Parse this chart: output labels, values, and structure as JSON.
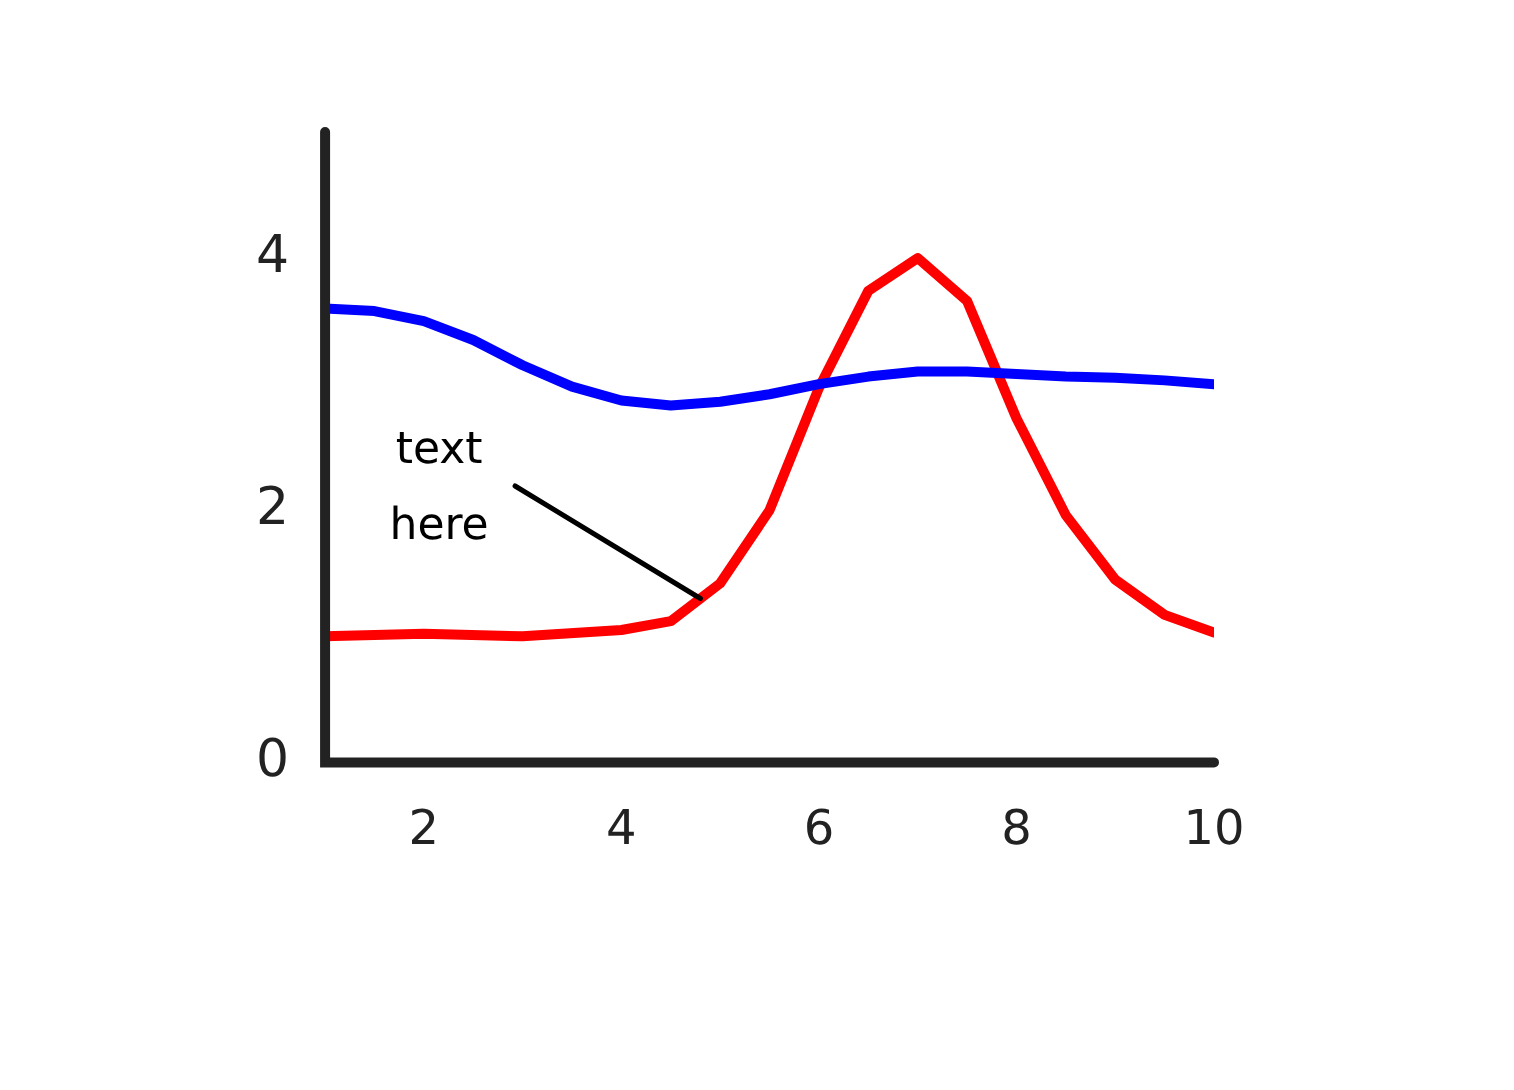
{
  "chart_data": {
    "type": "line",
    "xlim": [
      1,
      10
    ],
    "ylim": [
      0,
      5
    ],
    "xticks": [
      2,
      4,
      6,
      8,
      10
    ],
    "yticks": [
      0,
      2,
      4
    ],
    "grid": false,
    "legend": false,
    "marker": "none",
    "line_style": "solid",
    "series": [
      {
        "color": "#0000ff",
        "x": [
          1,
          1.5,
          2,
          2.5,
          3,
          3.5,
          4,
          4.5,
          5,
          5.5,
          6,
          6.5,
          7,
          7.5,
          8,
          8.5,
          9,
          9.5,
          10
        ],
        "values": [
          3.6,
          3.58,
          3.5,
          3.35,
          3.15,
          2.98,
          2.87,
          2.83,
          2.86,
          2.92,
          3.0,
          3.06,
          3.1,
          3.1,
          3.08,
          3.06,
          3.05,
          3.03,
          3.0
        ]
      },
      {
        "color": "#ff0000",
        "x": [
          1,
          2,
          3,
          4,
          4.5,
          5,
          5.5,
          6,
          6.5,
          7,
          7.5,
          8,
          8.5,
          9,
          9.5,
          10
        ],
        "values": [
          1.0,
          1.02,
          1.0,
          1.05,
          1.12,
          1.42,
          2.0,
          2.97,
          3.74,
          4.0,
          3.66,
          2.73,
          1.96,
          1.45,
          1.17,
          1.03
        ]
      }
    ],
    "annotations": [
      {
        "text": "text\nhere",
        "x": 4.8,
        "y": 1.3
      }
    ]
  }
}
